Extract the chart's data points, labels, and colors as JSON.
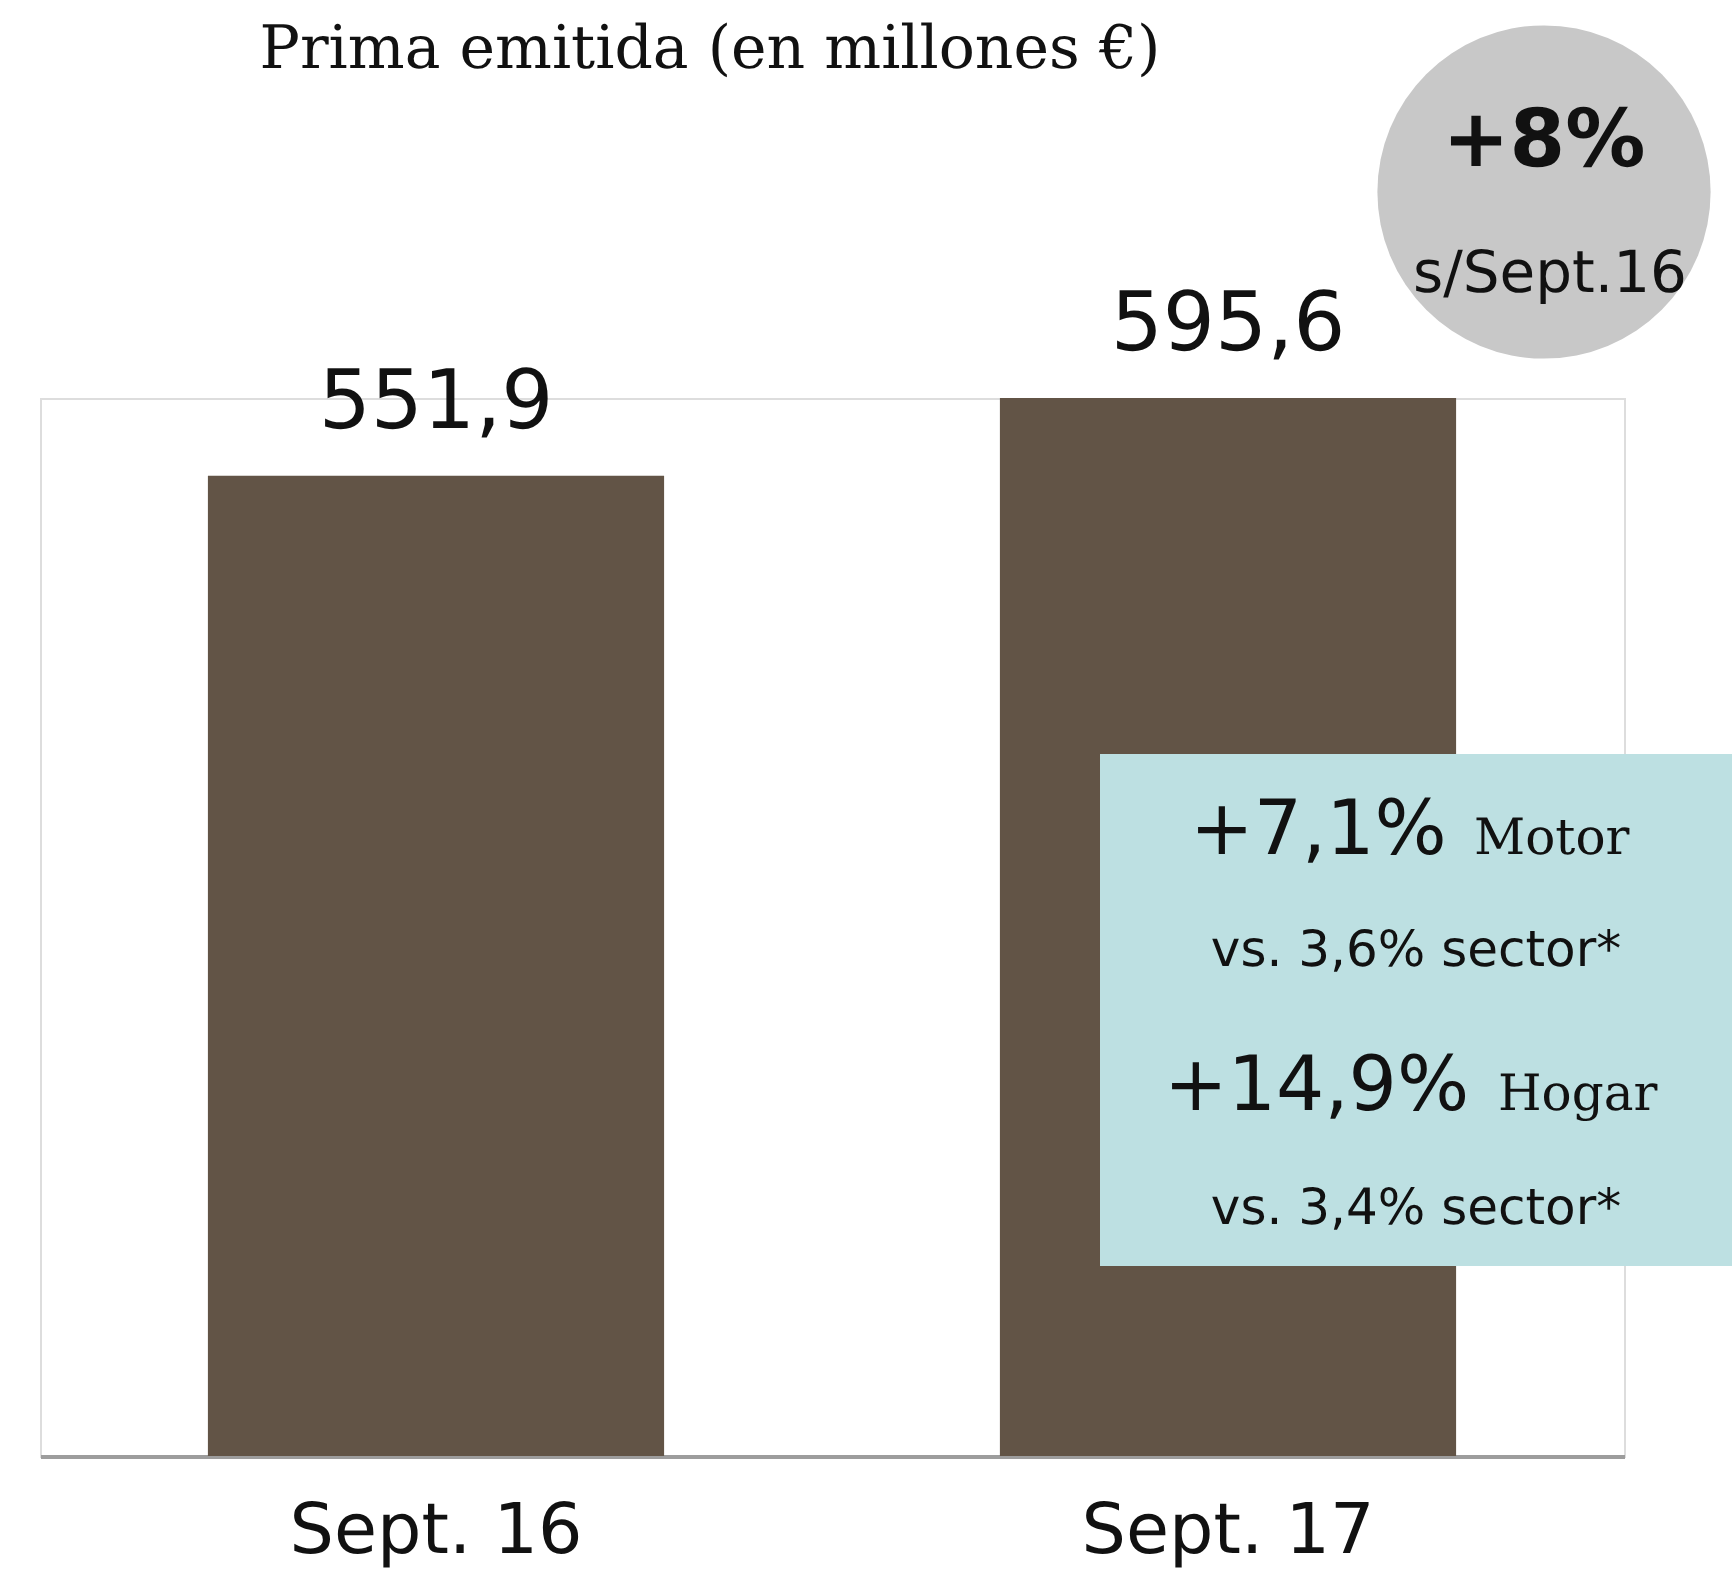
{
  "chart_data": {
    "type": "bar",
    "title": "Prima emitida (en millones €)",
    "categories": [
      "Sept. 16",
      "Sept. 17"
    ],
    "values": [
      551.9,
      595.6
    ],
    "color": "#625446",
    "value_labels": [
      "551,9",
      "595,6"
    ],
    "tick_labels": "x",
    "annotations": [
      "+8%",
      "s/Sept.16",
      "+7,1%",
      "Motor",
      "vs. 3,6% sector*",
      "+14,9%",
      "Hogar",
      "vs. 3,4% sector*"
    ]
  }
}
